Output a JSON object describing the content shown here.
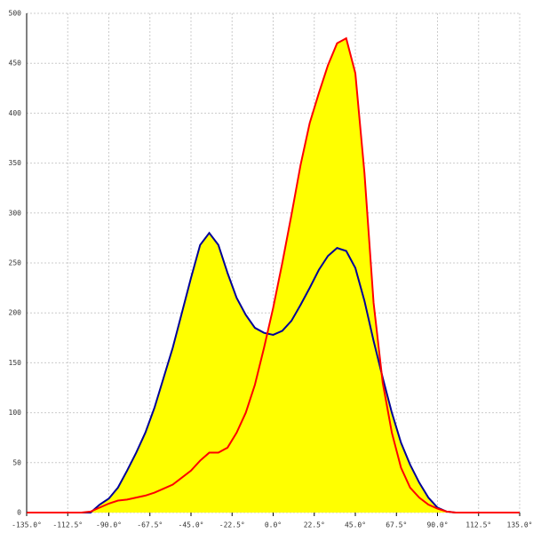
{
  "chart_data": {
    "type": "area",
    "x": [
      -135,
      -105,
      -100,
      -95,
      -90,
      -85,
      -80,
      -75,
      -70,
      -65,
      -60,
      -55,
      -50,
      -45,
      -40,
      -35,
      -30,
      -25,
      -20,
      -15,
      -10,
      -5,
      0,
      5,
      10,
      15,
      20,
      25,
      30,
      35,
      40,
      45,
      50,
      55,
      60,
      65,
      70,
      75,
      80,
      85,
      90,
      95,
      100,
      105,
      135
    ],
    "fill": "#ffff00",
    "series": [
      {
        "color": "#000099",
        "values": [
          0,
          0,
          0,
          8,
          14,
          25,
          42,
          60,
          80,
          105,
          135,
          165,
          200,
          235,
          268,
          280,
          268,
          240,
          215,
          198,
          185,
          180,
          178,
          182,
          192,
          208,
          225,
          243,
          257,
          265,
          262,
          245,
          212,
          172,
          135,
          100,
          70,
          48,
          30,
          15,
          5,
          1,
          0,
          0,
          0
        ]
      },
      {
        "color": "#ff0000",
        "values": [
          0,
          0,
          1,
          5,
          9,
          12,
          13,
          15,
          17,
          20,
          24,
          28,
          35,
          42,
          52,
          60,
          60,
          65,
          80,
          100,
          128,
          165,
          205,
          250,
          298,
          348,
          390,
          420,
          448,
          470,
          475,
          440,
          340,
          210,
          130,
          80,
          45,
          25,
          15,
          8,
          4,
          1,
          0,
          0,
          0
        ]
      }
    ],
    "xlim": [
      -135,
      135
    ],
    "ylim": [
      0,
      500
    ],
    "xticks": [
      {
        "value": -135,
        "label": "-135.0°"
      },
      {
        "value": -112.5,
        "label": "-112.5°"
      },
      {
        "value": -90,
        "label": "-90.0°"
      },
      {
        "value": -67.5,
        "label": "-67.5°"
      },
      {
        "value": -45,
        "label": "-45.0°"
      },
      {
        "value": -22.5,
        "label": "-22.5°"
      },
      {
        "value": 0,
        "label": "0.0°"
      },
      {
        "value": 22.5,
        "label": "22.5°"
      },
      {
        "value": 45,
        "label": "45.0°"
      },
      {
        "value": 67.5,
        "label": "67.5°"
      },
      {
        "value": 90,
        "label": "90.0°"
      },
      {
        "value": 112.5,
        "label": "112.5°"
      },
      {
        "value": 135,
        "label": "135.0°"
      }
    ],
    "yticks": [
      0,
      50,
      100,
      150,
      200,
      250,
      300,
      350,
      400,
      450,
      500
    ],
    "grid": true
  }
}
